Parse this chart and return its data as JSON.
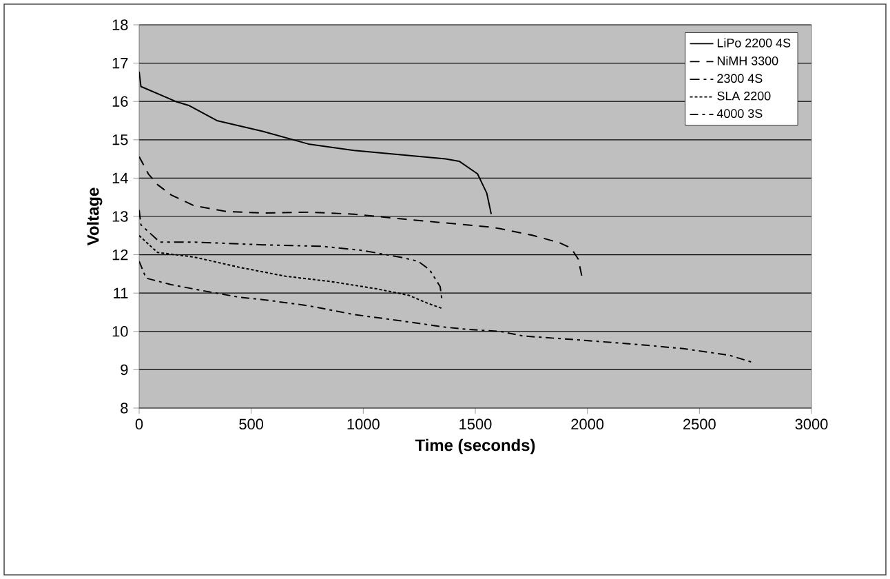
{
  "chart_data": {
    "type": "line",
    "xlabel": "Time (seconds)",
    "ylabel": "Voltage",
    "xlim": [
      0,
      3000
    ],
    "xticks": [
      0,
      500,
      1000,
      1500,
      2000,
      2500,
      3000
    ],
    "ylim": [
      8,
      18
    ],
    "yticks": [
      8,
      9,
      10,
      11,
      12,
      13,
      14,
      15,
      16,
      17,
      18
    ],
    "grid": "y",
    "legend": "top right",
    "marker": "none",
    "series": [
      {
        "name": "LiPo 2200 4S",
        "color": "#000000",
        "line_style": "solid",
        "x": [
          0,
          8,
          163,
          224,
          347,
          551,
          755,
          959,
          1163,
          1367,
          1428,
          1510,
          1551,
          1571
        ],
        "values": [
          16.78,
          16.39,
          16.0,
          15.89,
          15.5,
          15.22,
          14.89,
          14.72,
          14.61,
          14.5,
          14.44,
          14.11,
          13.61,
          13.06
        ]
      },
      {
        "name": "NiMH 3300",
        "color": "#000000",
        "line_style": "dashed",
        "x": [
          0,
          41,
          82,
          143,
          245,
          388,
          551,
          755,
          959,
          1163,
          1367,
          1571,
          1611,
          1754,
          1877,
          1928,
          1959,
          1975
        ],
        "values": [
          14.56,
          14.11,
          13.83,
          13.56,
          13.28,
          13.13,
          13.09,
          13.11,
          13.06,
          12.94,
          12.83,
          12.72,
          12.68,
          12.51,
          12.31,
          12.17,
          11.89,
          11.45
        ]
      },
      {
        "name": "2300 4S",
        "color": "#000000",
        "line_style": "dashdotdot",
        "x": [
          0,
          8,
          92,
          245,
          551,
          816,
          1000,
          1163,
          1245,
          1296,
          1343,
          1351
        ],
        "values": [
          13.17,
          12.78,
          12.33,
          12.33,
          12.26,
          12.22,
          12.11,
          11.94,
          11.83,
          11.61,
          11.17,
          10.83
        ]
      },
      {
        "name": "SLA 2200",
        "color": "#000000",
        "line_style": "dotted",
        "x": [
          0,
          82,
          245,
          449,
          653,
          857,
          1061,
          1204,
          1285,
          1357
        ],
        "values": [
          12.5,
          12.06,
          11.94,
          11.67,
          11.44,
          11.3,
          11.11,
          10.94,
          10.74,
          10.59
        ]
      },
      {
        "name": "4000 3S",
        "color": "#000000",
        "line_style": "dashdot",
        "x": [
          0,
          31,
          143,
          286,
          449,
          551,
          755,
          959,
          1163,
          1367,
          1469,
          1612,
          1714,
          1979,
          2224,
          2428,
          2632,
          2744
        ],
        "values": [
          11.83,
          11.39,
          11.22,
          11.06,
          10.89,
          10.83,
          10.67,
          10.44,
          10.28,
          10.11,
          10.05,
          10.0,
          9.88,
          9.77,
          9.66,
          9.55,
          9.38,
          9.18
        ]
      }
    ]
  }
}
